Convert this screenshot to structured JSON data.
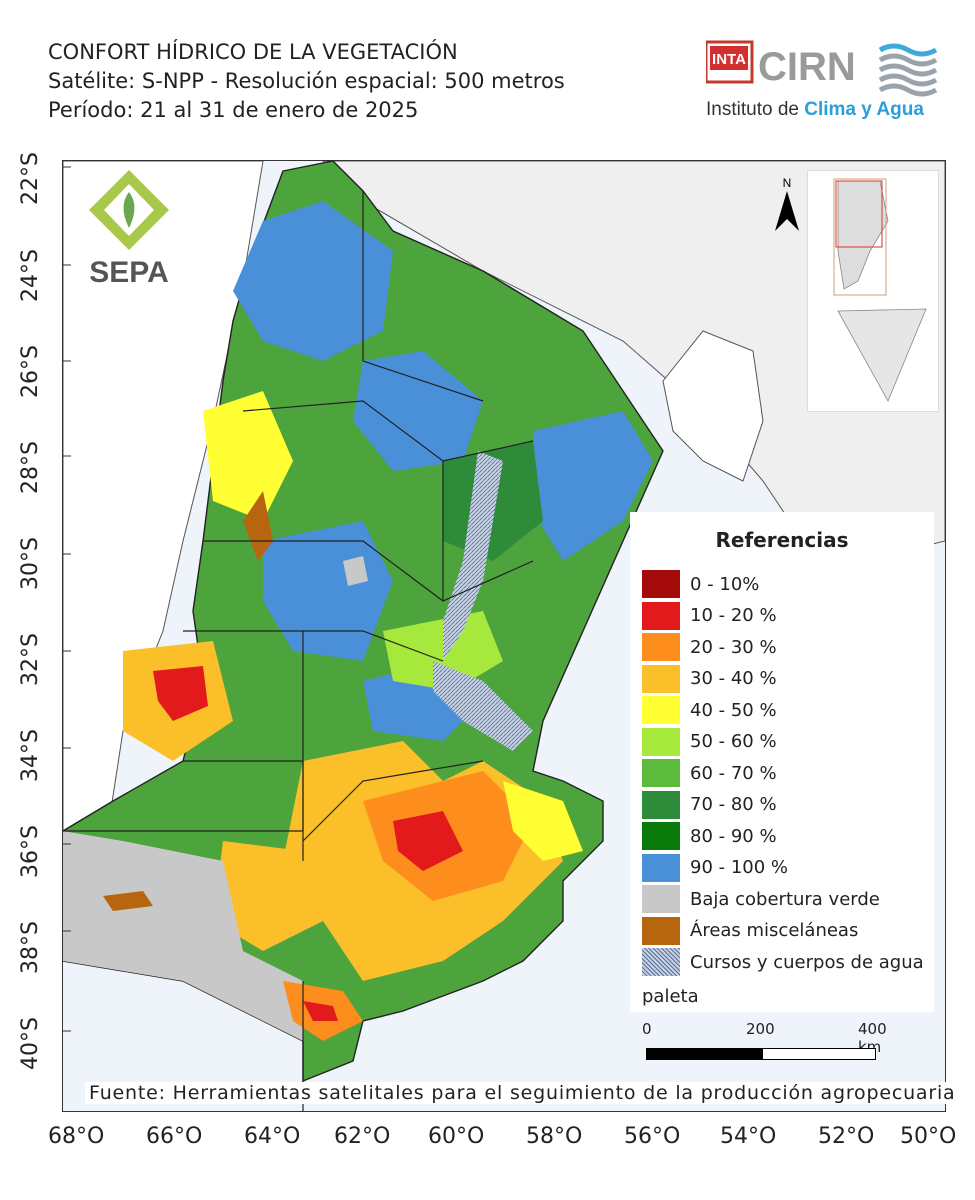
{
  "header": {
    "title": "CONFORT HÍDRICO DE LA VEGETACIÓN",
    "satellite": "Satélite: S-NPP - Resolución espacial: 500 metros",
    "period": "Período: 21 al 31 de enero de 2025"
  },
  "logos": {
    "inta": "INTA",
    "cirn": "CIRN",
    "institute": [
      "Instituto de ",
      "Clima y Agua"
    ],
    "sepa": "SEPA"
  },
  "map": {
    "north_arrow": "N",
    "lat_labels": [
      "22°S",
      "24°S",
      "26°S",
      "28°S",
      "30°S",
      "32°S",
      "34°S",
      "36°S",
      "38°S",
      "40°S"
    ],
    "lon_labels": [
      "68°O",
      "66°O",
      "64°O",
      "62°O",
      "60°O",
      "58°O",
      "56°O",
      "54°O",
      "52°O",
      "50°O"
    ]
  },
  "legend": {
    "title": "Referencias",
    "items": [
      {
        "label": "0 - 10%",
        "color": "#a50a0a"
      },
      {
        "label": "10 - 20 %",
        "color": "#e31a1c"
      },
      {
        "label": "20 - 30 %",
        "color": "#fd8d1c"
      },
      {
        "label": "30 - 40 %",
        "color": "#fbbf2a"
      },
      {
        "label": "40 - 50 %",
        "color": "#ffff33"
      },
      {
        "label": "50 - 60 %",
        "color": "#a6e83c"
      },
      {
        "label": "60 - 70 %",
        "color": "#5cba3c"
      },
      {
        "label": "70 - 80 %",
        "color": "#2e8b3a"
      },
      {
        "label": "80 - 90 %",
        "color": "#0a7a0a"
      },
      {
        "label": "90 - 100 %",
        "color": "#4a90d9"
      },
      {
        "label": "Baja cobertura verde",
        "color": "#c8c8c8"
      },
      {
        "label": "Áreas misceláneas",
        "color": "#b8650f"
      },
      {
        "label": "Cursos y cuerpos de agua",
        "color": "#8aa0c8"
      }
    ],
    "extra": "paleta"
  },
  "scalebar": {
    "labels": [
      "0",
      "200",
      "400 km"
    ]
  },
  "source": "Fuente: Herramientas satelitales para el seguimiento de la producción agropecuaria"
}
